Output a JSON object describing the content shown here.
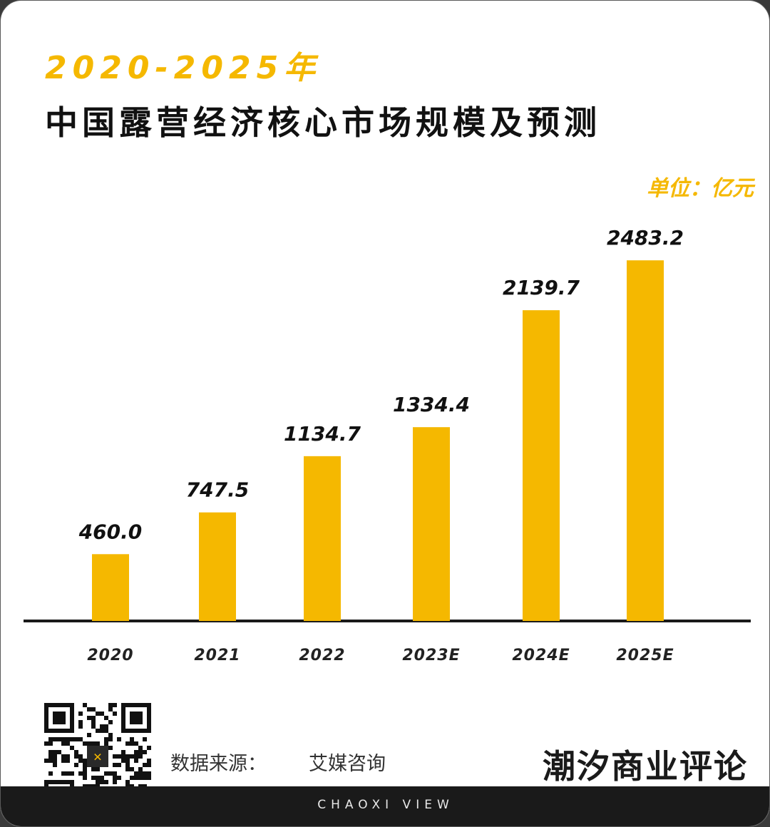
{
  "header": {
    "title_year": "2020-2025年",
    "title_main": "中国露营经济核心市场规模及预测",
    "unit": "单位：亿元"
  },
  "colors": {
    "accent": "#f5b800",
    "bar": "#f5b800",
    "axis": "#1a1a1a",
    "text": "#111111"
  },
  "chart_data": {
    "type": "bar",
    "title": "2020-2025年 中国露营经济核心市场规模及预测",
    "categories": [
      "2020",
      "2021",
      "2022",
      "2023E",
      "2024E",
      "2025E"
    ],
    "values": [
      460.0,
      747.5,
      1134.7,
      1334.4,
      2139.7,
      2483.2
    ],
    "value_labels": [
      "460.0",
      "747.5",
      "1134.7",
      "1334.4",
      "2139.7",
      "2483.2"
    ],
    "unit": "亿元",
    "ylim": [
      0,
      2700
    ],
    "grid": false,
    "legend": "none"
  },
  "footer": {
    "source_label": "数据来源：",
    "source_value": "艾媒咨询",
    "brand_cn": "潮汐商业评论",
    "brand_en": "CHAOXI VIEW",
    "qr_icon": "qr-code-icon"
  }
}
